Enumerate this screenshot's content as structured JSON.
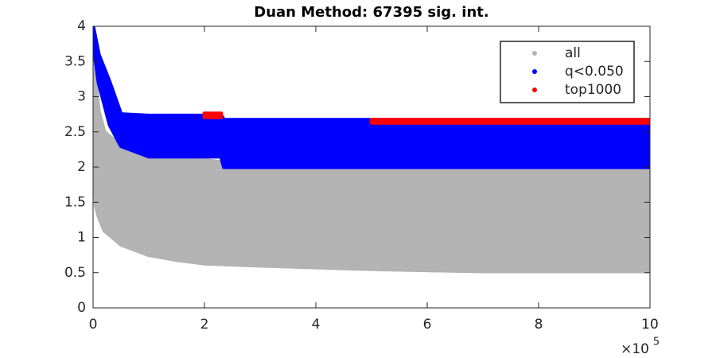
{
  "chart_data": {
    "type": "range-area",
    "title": "Duan Method: 67395 sig. int.",
    "xlim": [
      0,
      1000000
    ],
    "xticks": [
      0,
      {
        "value": 200000,
        "label": "2"
      },
      {
        "value": 400000,
        "label": "4"
      },
      {
        "value": 600000,
        "label": "6"
      },
      {
        "value": 800000,
        "label": "8"
      },
      {
        "value": 1000000,
        "label": "10"
      }
    ],
    "x_multiplier": {
      "base": "×10",
      "exponent": "5"
    },
    "ylim": [
      0,
      4
    ],
    "yticks": [
      0,
      0.5,
      1,
      1.5,
      2,
      2.5,
      3,
      3.5,
      4
    ],
    "legend": "northeast",
    "series": [
      {
        "name": "all",
        "color": "#b3b3b3",
        "x": [
          0,
          5000,
          10000,
          20000,
          50000,
          100000,
          150000,
          200000,
          300000,
          500000,
          700000,
          1000000
        ],
        "lower": [
          2.5,
          1.45,
          1.3,
          1.1,
          0.9,
          0.75,
          0.68,
          0.63,
          0.6,
          0.55,
          0.52,
          0.52
        ],
        "upper": [
          4,
          3.2,
          2.8,
          2.5,
          2.3,
          2.2,
          2.2,
          2.1,
          2,
          2,
          2,
          2
        ]
      },
      {
        "name": "q<0.050",
        "color": "#0000ff",
        "x": [
          0,
          10000,
          30000,
          50000,
          100000,
          230000,
          235000,
          1000000
        ],
        "lower": [
          3.8,
          3.2,
          2.6,
          2.3,
          2.15,
          2.15,
          2,
          2
        ],
        "upper": [
          4,
          3.6,
          3.2,
          2.75,
          2.73,
          2.73,
          2.67,
          2.67
        ]
      },
      {
        "name": "top1000",
        "color": "#ff0000",
        "x": [
          200000,
          230000,
          240000,
          500000,
          1000000
        ],
        "lower": [
          2.71,
          2.71,
          null,
          2.63,
          2.63
        ],
        "upper": [
          2.76,
          2.76,
          null,
          2.67,
          2.67
        ]
      }
    ]
  }
}
